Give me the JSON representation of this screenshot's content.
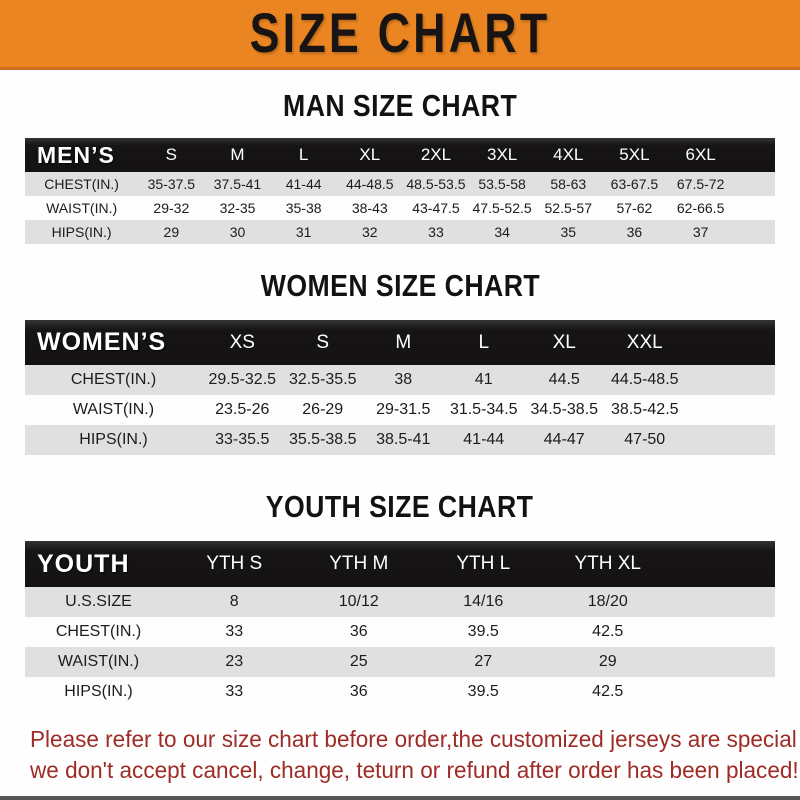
{
  "banner": {
    "title": "SIZE CHART",
    "bg_color": "#ea8522",
    "text_color": "#181413"
  },
  "tables": [
    {
      "heading": "MAN SIZE CHART",
      "header": [
        "MEN’S",
        "S",
        "M",
        "L",
        "XL",
        "2XL",
        "3XL",
        "4XL",
        "5XL",
        "6XL"
      ],
      "rows": [
        [
          "CHEST(IN.)",
          "35-37.5",
          "37.5-41",
          "41-44",
          "44-48.5",
          "48.5-53.5",
          "53.5-58",
          "58-63",
          "63-67.5",
          "67.5-72"
        ],
        [
          "WAIST(IN.)",
          "29-32",
          "32-35",
          "35-38",
          "38-43",
          "43-47.5",
          "47.5-52.5",
          "52.5-57",
          "57-62",
          "62-66.5"
        ],
        [
          "HIPS(IN.)",
          "29",
          "30",
          "31",
          "32",
          "33",
          "34",
          "35",
          "36",
          "37"
        ]
      ]
    },
    {
      "heading": "WOMEN SIZE CHART",
      "header": [
        "WOMEN’S",
        "XS",
        "S",
        "M",
        "L",
        "XL",
        "XXL"
      ],
      "rows": [
        [
          "CHEST(IN.)",
          "29.5-32.5",
          "32.5-35.5",
          "38",
          "41",
          "44.5",
          "44.5-48.5"
        ],
        [
          "WAIST(IN.)",
          "23.5-26",
          "26-29",
          "29-31.5",
          "31.5-34.5",
          "34.5-38.5",
          "38.5-42.5"
        ],
        [
          "HIPS(IN.)",
          "33-35.5",
          "35.5-38.5",
          "38.5-41",
          "41-44",
          "44-47",
          "47-50"
        ]
      ]
    },
    {
      "heading": "YOUTH SIZE CHART",
      "header": [
        "YOUTH",
        "YTH S",
        "YTH M",
        "YTH L",
        "YTH XL"
      ],
      "rows": [
        [
          "U.S.SIZE",
          "8",
          "10/12",
          "14/16",
          "18/20"
        ],
        [
          "CHEST(IN.)",
          "33",
          "36",
          "39.5",
          "42.5"
        ],
        [
          "WAIST(IN.)",
          "23",
          "25",
          "27",
          "29"
        ],
        [
          "HIPS(IN.)",
          "33",
          "36",
          "39.5",
          "42.5"
        ]
      ]
    }
  ],
  "disclaimer": {
    "color": "#9e2b26",
    "lines": [
      "Please refer to our size chart before order,the customized jerseys are special products,",
      "we don't accept cancel, change, teturn or refund after order has been placed!"
    ]
  }
}
